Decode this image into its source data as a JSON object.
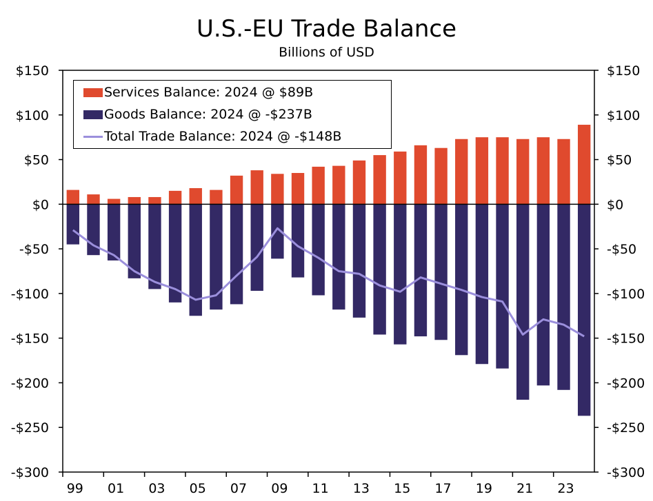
{
  "chart_data": {
    "type": "bar",
    "title": "U.S.-EU Trade Balance",
    "subtitle": "Billions of USD",
    "x": [
      1999,
      2000,
      2001,
      2002,
      2003,
      2004,
      2005,
      2006,
      2007,
      2008,
      2009,
      2010,
      2011,
      2012,
      2013,
      2014,
      2015,
      2016,
      2017,
      2018,
      2019,
      2020,
      2021,
      2022,
      2023,
      2024
    ],
    "x_tick_labels": [
      "99",
      "01",
      "03",
      "05",
      "07",
      "09",
      "11",
      "13",
      "15",
      "17",
      "19",
      "21",
      "23"
    ],
    "ylim": [
      -300,
      150
    ],
    "y_tick_labels": [
      "$150",
      "$100",
      "$50",
      "$0",
      "-$50",
      "-$100",
      "-$150",
      "-$200",
      "-$250",
      "-$300"
    ],
    "y_tick_values": [
      150,
      100,
      50,
      0,
      -50,
      -100,
      -150,
      -200,
      -250,
      -300
    ],
    "series": [
      {
        "name": "Services Balance: 2024 @ $89B",
        "kind": "bar",
        "color": "#e04a2e",
        "values": [
          16,
          11,
          6,
          8,
          8,
          15,
          18,
          16,
          32,
          38,
          34,
          35,
          42,
          43,
          49,
          55,
          59,
          66,
          63,
          73,
          75,
          75,
          73,
          75,
          73,
          89
        ]
      },
      {
        "name": "Goods Balance: 2024 @ -$237B",
        "kind": "bar",
        "color": "#332965",
        "values": [
          -45,
          -57,
          -63,
          -83,
          -95,
          -110,
          -125,
          -118,
          -112,
          -97,
          -61,
          -82,
          -102,
          -118,
          -127,
          -146,
          -157,
          -148,
          -152,
          -169,
          -179,
          -184,
          -219,
          -203,
          -208,
          -237
        ]
      },
      {
        "name": "Total Trade Balance: 2024 @ -$148B",
        "kind": "line",
        "color": "#9b8fdc",
        "values": [
          -29,
          -46,
          -57,
          -75,
          -87,
          -95,
          -107,
          -102,
          -80,
          -59,
          -27,
          -47,
          -60,
          -75,
          -78,
          -91,
          -98,
          -82,
          -89,
          -96,
          -104,
          -109,
          -146,
          -129,
          -135,
          -148
        ]
      }
    ]
  }
}
